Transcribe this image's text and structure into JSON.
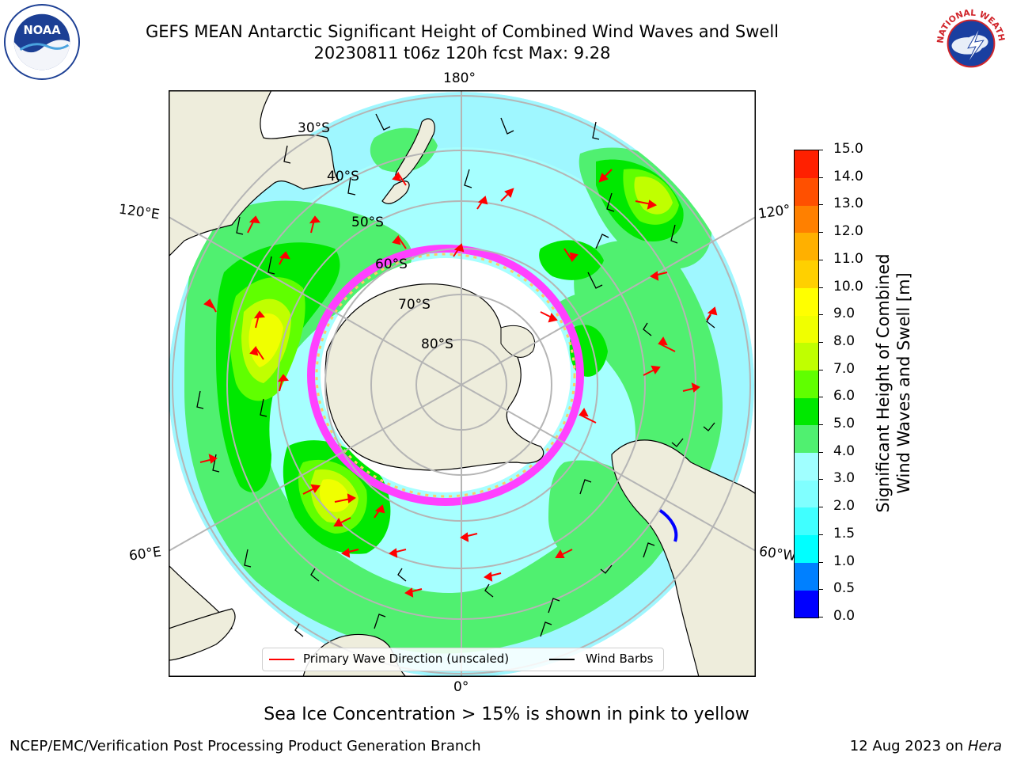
{
  "header": {
    "title_line1": "GEFS MEAN Antarctic Significant Height of Combined Wind Waves and Swell",
    "title_line2": "20230811 t06z 120h fcst   Max: 9.28"
  },
  "logos": {
    "left": "NOAA",
    "right": "NATIONAL WEATHER SERVICE"
  },
  "map": {
    "projection": "south-polar-stereographic",
    "longitude_labels": {
      "top": "180°",
      "bottom": "0°",
      "upper_left": "120°E",
      "upper_right": "120°",
      "lower_left": "60°E",
      "lower_right": "60°W"
    },
    "latitude_labels": [
      "30°S",
      "40°S",
      "50°S",
      "60°S",
      "70°S",
      "80°S"
    ],
    "legend": {
      "wave_direction": "Primary Wave Direction (unscaled)",
      "wind_barbs": "Wind Barbs"
    },
    "colors": {
      "land": "#eeeddc",
      "antarctica": "#eeeddc",
      "graticule": "#b5b5b5",
      "wave_arrow": "#ff0000",
      "wind_barb": "#000000",
      "sea_ice": "#ff40ff"
    }
  },
  "colorbar": {
    "title_line1": "Significant Height of Combined",
    "title_line2": "Wind Waves and Swell [m]",
    "ticks": [
      "0.0",
      "0.5",
      "1.0",
      "1.5",
      "2.0",
      "3.0",
      "4.0",
      "5.0",
      "6.0",
      "7.0",
      "8.0",
      "9.0",
      "10.0",
      "11.0",
      "12.0",
      "13.0",
      "14.0",
      "15.0"
    ],
    "colors": [
      "#0000ff",
      "#0080ff",
      "#00ffff",
      "#40ffff",
      "#80ffff",
      "#a0ffff",
      "#50f070",
      "#00e800",
      "#60ff00",
      "#c0ff00",
      "#f0ff00",
      "#ffff00",
      "#ffd000",
      "#ffb000",
      "#ff8000",
      "#ff5000",
      "#ff2000"
    ]
  },
  "captions": {
    "ice": "Sea Ice Concentration > 15% is shown in pink to yellow",
    "footer_left": "NCEP/EMC/Verification Post Processing Product Generation Branch",
    "footer_date": "12 Aug 2023 on ",
    "footer_host": "Hera"
  }
}
